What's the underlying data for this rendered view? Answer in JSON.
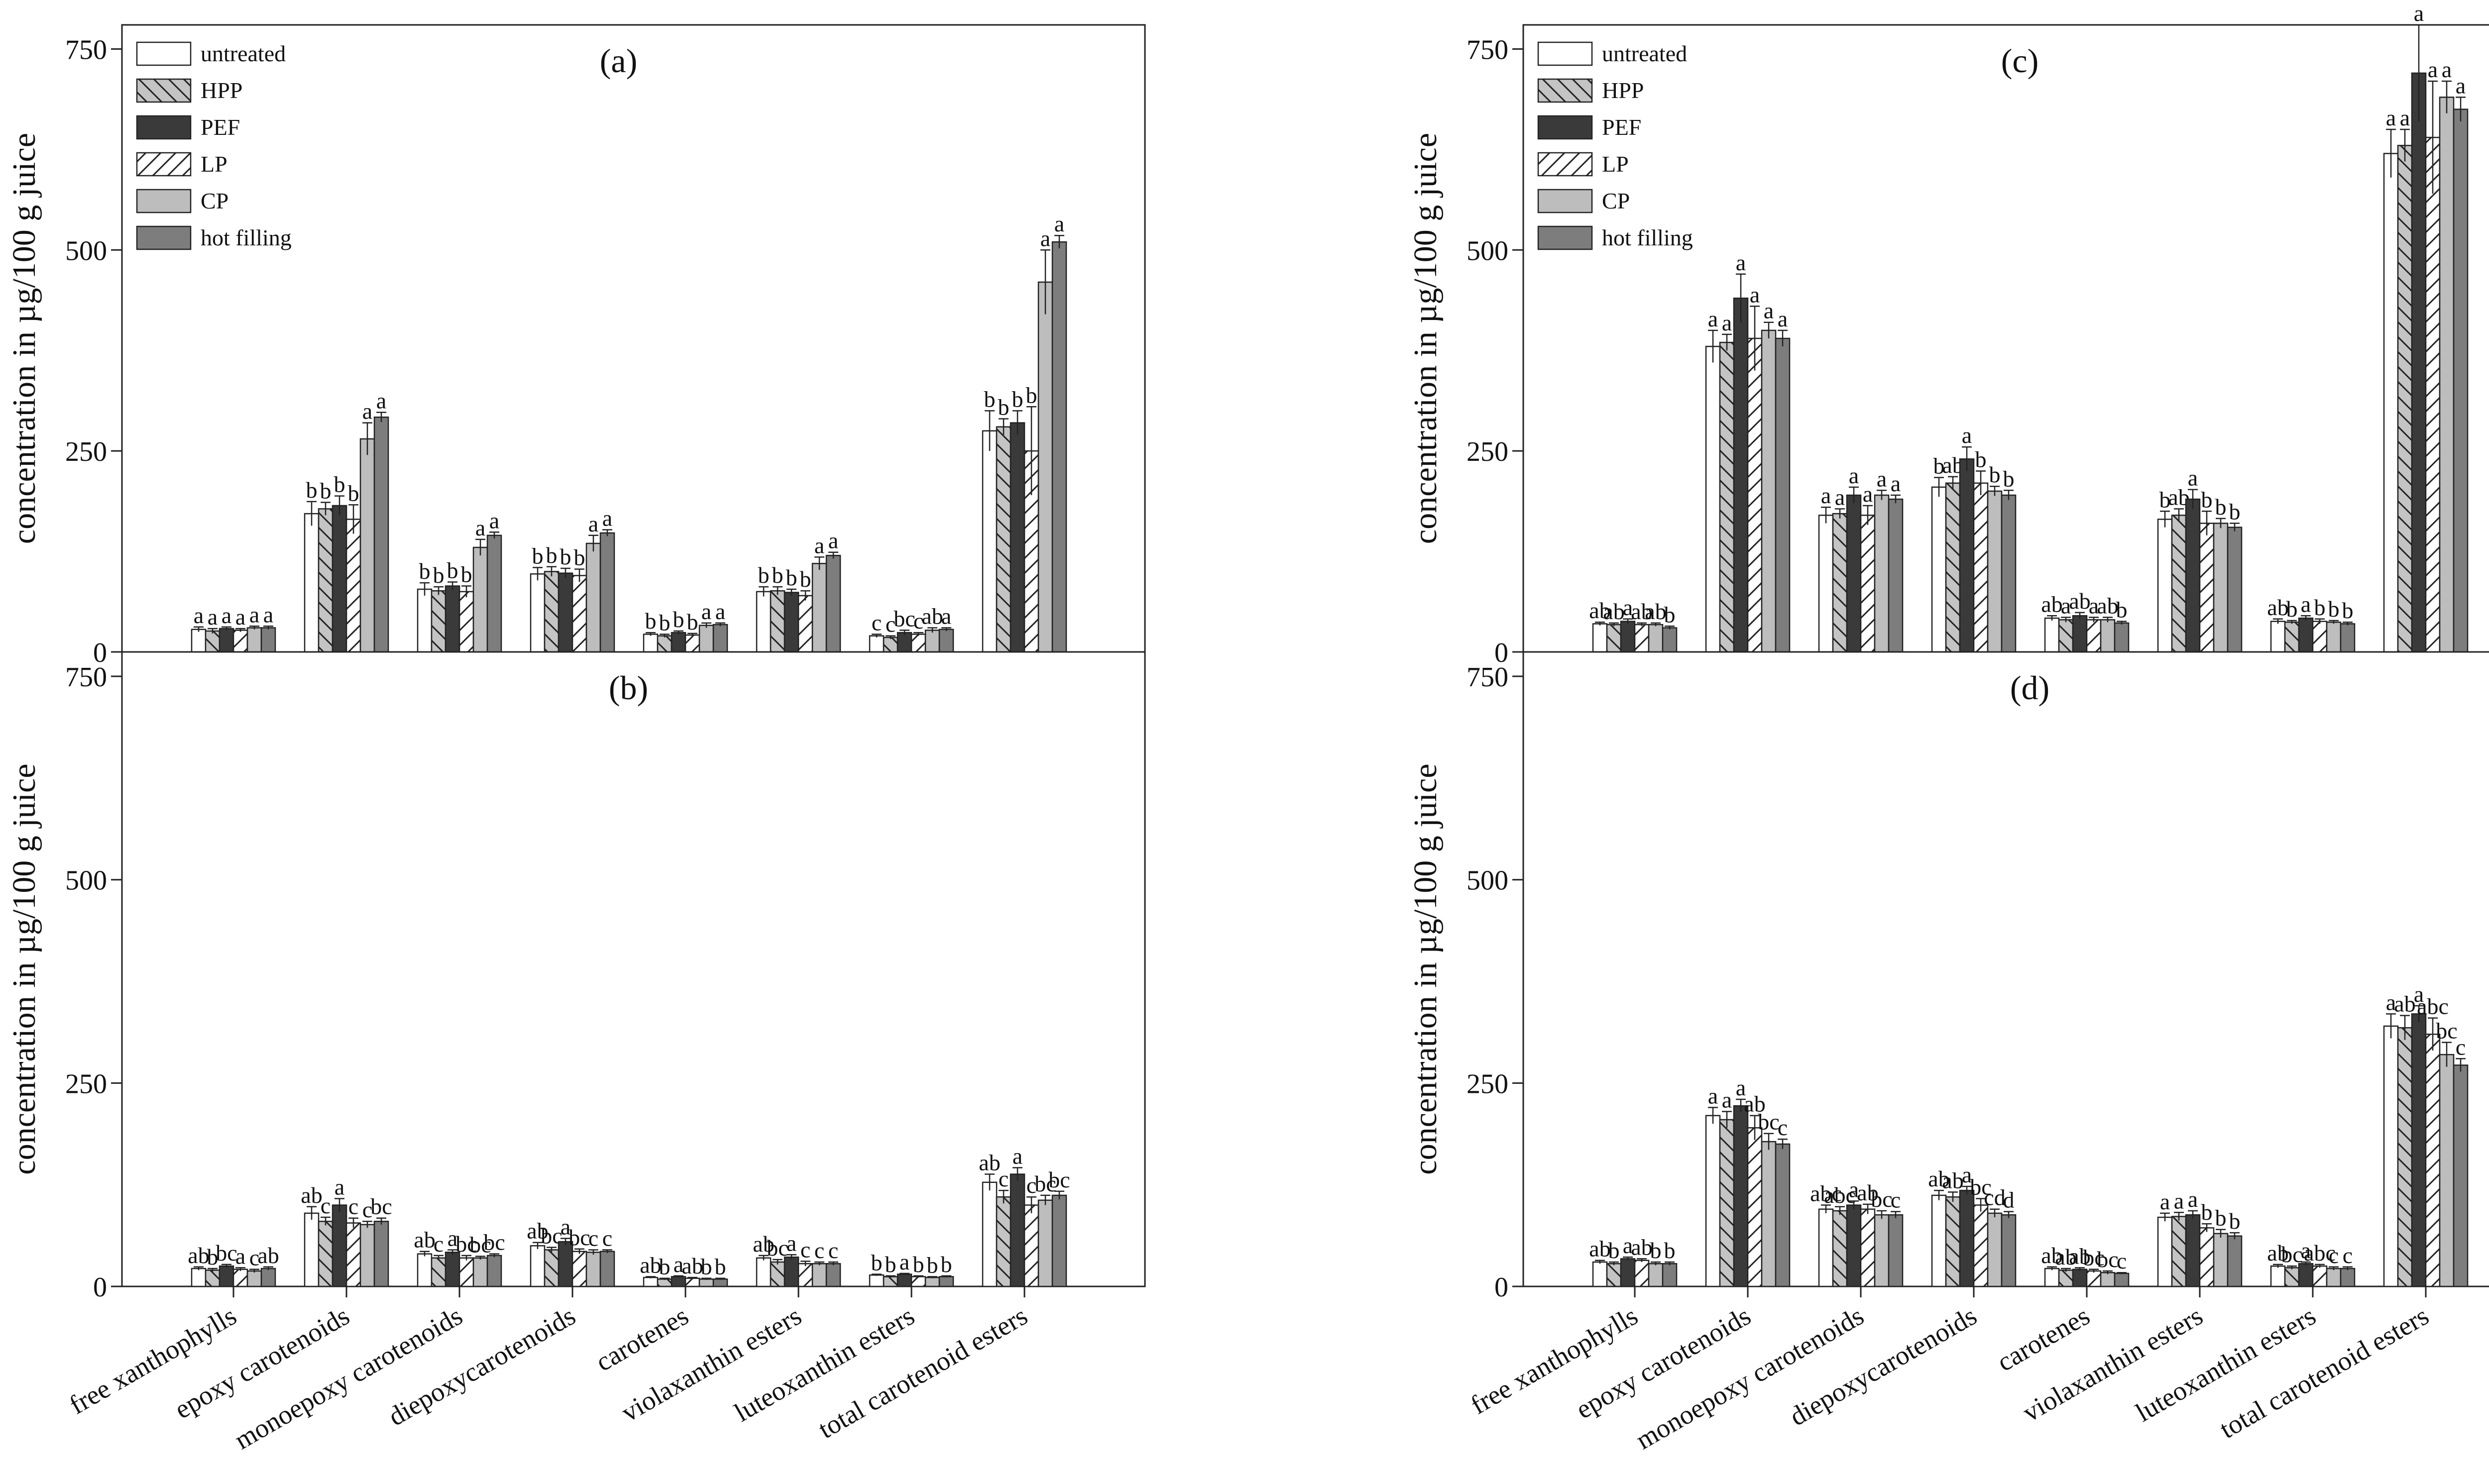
{
  "figure": {
    "ylabel": "concentration in µg/100 g juice",
    "yticks": [
      0,
      250,
      500,
      750
    ],
    "ylim": [
      0,
      780
    ]
  },
  "treatments": [
    {
      "name": "untreated",
      "fill": "#ffffff",
      "pattern": "none"
    },
    {
      "name": "HPP",
      "fill": "#c4c4c4",
      "pattern": "back-diagonal"
    },
    {
      "name": "PEF",
      "fill": "#3a3a3a",
      "pattern": "none"
    },
    {
      "name": "LP",
      "fill": "#ffffff",
      "pattern": "forward-diagonal"
    },
    {
      "name": "CP",
      "fill": "#bdbdbd",
      "pattern": "none"
    },
    {
      "name": "hot filling",
      "fill": "#7d7d7d",
      "pattern": "none"
    }
  ],
  "categories": [
    "free xanthophylls",
    "epoxy carotenoids",
    "monoepoxy carotenoids",
    "diepoxycarotenoids",
    "carotenes",
    "violaxanthin esters",
    "luteoxanthin esters",
    "total carotenoid esters"
  ],
  "chart_data": [
    {
      "type": "bar",
      "title": "(a)",
      "ylabel": "concentration in µg/100 g juice",
      "ylim": [
        0,
        780
      ],
      "categories": [
        "free xanthophylls",
        "epoxy carotenoids",
        "monoepoxy carotenoids",
        "diepoxycarotenoids",
        "carotenes",
        "violaxanthin esters",
        "luteoxanthin esters",
        "total carotenoid esters"
      ],
      "series": [
        {
          "name": "untreated",
          "values": [
            28,
            172,
            78,
            97,
            22,
            75,
            20,
            275
          ],
          "errors": [
            3,
            15,
            8,
            8,
            2,
            6,
            2,
            25
          ]
        },
        {
          "name": "HPP",
          "values": [
            26,
            178,
            76,
            100,
            20,
            76,
            18,
            280
          ],
          "errors": [
            3,
            8,
            5,
            6,
            2,
            5,
            2,
            10
          ]
        },
        {
          "name": "PEF",
          "values": [
            29,
            182,
            82,
            98,
            24,
            74,
            24,
            285
          ],
          "errors": [
            2,
            12,
            5,
            6,
            2,
            4,
            3,
            15
          ]
        },
        {
          "name": "LP",
          "values": [
            27,
            165,
            75,
            95,
            21,
            70,
            22,
            250
          ],
          "errors": [
            2,
            18,
            7,
            8,
            2,
            6,
            2,
            55
          ]
        },
        {
          "name": "CP",
          "values": [
            30,
            265,
            130,
            135,
            33,
            110,
            27,
            460
          ],
          "errors": [
            2,
            20,
            10,
            10,
            3,
            8,
            3,
            40
          ]
        },
        {
          "name": "hot filling",
          "values": [
            30,
            292,
            145,
            148,
            34,
            120,
            28,
            510
          ],
          "errors": [
            2,
            6,
            4,
            4,
            2,
            4,
            2,
            8
          ]
        }
      ],
      "labels": [
        [
          "a",
          "b",
          "b",
          "b",
          "b",
          "b",
          "c",
          "b"
        ],
        [
          "a",
          "b",
          "b",
          "b",
          "b",
          "b",
          "c",
          "b"
        ],
        [
          "a",
          "b",
          "b",
          "b",
          "b",
          "b",
          "bc",
          "b"
        ],
        [
          "a",
          "b",
          "b",
          "b",
          "b",
          "b",
          "c",
          "b"
        ],
        [
          "a",
          "a",
          "a",
          "a",
          "a",
          "a",
          "ab",
          "a"
        ],
        [
          "a",
          "a",
          "a",
          "a",
          "a",
          "a",
          "a",
          "a"
        ]
      ],
      "legend": "top-left"
    },
    {
      "type": "bar",
      "title": "(b)",
      "ylabel": "concentration in µg/100 g juice",
      "ylim": [
        0,
        780
      ],
      "categories": [
        "free xanthophylls",
        "epoxy carotenoids",
        "monoepoxy carotenoids",
        "diepoxycarotenoids",
        "carotenes",
        "violaxanthin esters",
        "luteoxanthin esters",
        "total carotenoid esters"
      ],
      "series": [
        {
          "name": "untreated",
          "values": [
            22,
            90,
            40,
            50,
            11,
            35,
            14,
            128
          ],
          "errors": [
            2,
            8,
            3,
            4,
            1,
            3,
            1,
            10
          ]
        },
        {
          "name": "HPP",
          "values": [
            20,
            80,
            35,
            45,
            9,
            30,
            12,
            110
          ],
          "errors": [
            2,
            5,
            3,
            3,
            1,
            3,
            1,
            8
          ]
        },
        {
          "name": "PEF",
          "values": [
            25,
            100,
            42,
            55,
            12,
            36,
            15,
            138
          ],
          "errors": [
            2,
            8,
            3,
            4,
            1,
            3,
            1,
            8
          ]
        },
        {
          "name": "LP",
          "values": [
            21,
            78,
            35,
            43,
            10,
            28,
            12,
            100
          ],
          "errors": [
            2,
            6,
            3,
            3,
            1,
            3,
            1,
            10
          ]
        },
        {
          "name": "CP",
          "values": [
            19,
            76,
            35,
            42,
            9,
            28,
            11,
            106
          ],
          "errors": [
            2,
            4,
            2,
            3,
            1,
            2,
            1,
            6
          ]
        },
        {
          "name": "hot filling",
          "values": [
            22,
            80,
            38,
            43,
            9,
            28,
            12,
            112
          ],
          "errors": [
            2,
            4,
            2,
            2,
            1,
            2,
            1,
            5
          ]
        }
      ],
      "labels": [
        [
          "ab",
          "ab",
          "ab",
          "ab",
          "ab",
          "ab",
          "b",
          "ab"
        ],
        [
          "b",
          "c",
          "c",
          "bc",
          "b",
          "bc",
          "b",
          "c"
        ],
        [
          "bc",
          "a",
          "a",
          "a",
          "a",
          "a",
          "a",
          "a"
        ],
        [
          "a",
          "c",
          "bc",
          "bc",
          "ab",
          "c",
          "b",
          "c"
        ],
        [
          "c",
          "c",
          "bc",
          "c",
          "b",
          "c",
          "b",
          "bc"
        ],
        [
          "ab",
          "bc",
          "bc",
          "c",
          "b",
          "c",
          "b",
          "bc"
        ]
      ],
      "legend": "none"
    },
    {
      "type": "bar",
      "title": "(c)",
      "ylabel": "concentration in µg/100 g juice",
      "ylim": [
        0,
        780
      ],
      "categories": [
        "free xanthophylls",
        "epoxy carotenoids",
        "monoepoxy carotenoids",
        "diepoxycarotenoids",
        "carotenes",
        "violaxanthin esters",
        "luteoxanthin esters",
        "total carotenoid esters"
      ],
      "series": [
        {
          "name": "untreated",
          "values": [
            35,
            380,
            170,
            205,
            42,
            165,
            38,
            620
          ],
          "errors": [
            2,
            20,
            10,
            12,
            3,
            10,
            3,
            30
          ]
        },
        {
          "name": "HPP",
          "values": [
            34,
            385,
            172,
            210,
            40,
            170,
            37,
            630
          ],
          "errors": [
            2,
            10,
            6,
            8,
            3,
            8,
            2,
            20
          ]
        },
        {
          "name": "PEF",
          "values": [
            38,
            440,
            195,
            240,
            45,
            190,
            42,
            720
          ],
          "errors": [
            3,
            30,
            10,
            15,
            4,
            12,
            3,
            60
          ]
        },
        {
          "name": "LP",
          "values": [
            34,
            390,
            170,
            210,
            40,
            160,
            38,
            640
          ],
          "errors": [
            2,
            40,
            12,
            15,
            3,
            15,
            3,
            70
          ]
        },
        {
          "name": "CP",
          "values": [
            34,
            400,
            195,
            200,
            40,
            160,
            37,
            690
          ],
          "errors": [
            2,
            10,
            6,
            6,
            3,
            6,
            2,
            20
          ]
        },
        {
          "name": "hot filling",
          "values": [
            30,
            390,
            190,
            195,
            36,
            155,
            35,
            675
          ],
          "errors": [
            2,
            10,
            5,
            6,
            2,
            5,
            2,
            15
          ]
        }
      ],
      "labels": [
        [
          "ab",
          "a",
          "a",
          "b",
          "ab",
          "b",
          "ab",
          "a"
        ],
        [
          "ab",
          "a",
          "a",
          "ab",
          "a",
          "ab",
          "b",
          "a"
        ],
        [
          "a",
          "a",
          "a",
          "a",
          "ab",
          "a",
          "a",
          "a"
        ],
        [
          "ab",
          "a",
          "a",
          "b",
          "a",
          "b",
          "b",
          "a"
        ],
        [
          "ab",
          "a",
          "a",
          "b",
          "ab",
          "b",
          "b",
          "a"
        ],
        [
          "b",
          "a",
          "a",
          "b",
          "b",
          "b",
          "b",
          "a"
        ]
      ],
      "legend": "top-left"
    },
    {
      "type": "bar",
      "title": "(d)",
      "ylabel": "concentration in µg/100 g juice",
      "ylim": [
        0,
        780
      ],
      "categories": [
        "free xanthophylls",
        "epoxy carotenoids",
        "monoepoxy carotenoids",
        "diepoxycarotenoids",
        "carotenes",
        "violaxanthin esters",
        "luteoxanthin esters",
        "total carotenoid esters"
      ],
      "series": [
        {
          "name": "untreated",
          "values": [
            30,
            210,
            95,
            112,
            22,
            85,
            25,
            320
          ],
          "errors": [
            2,
            10,
            5,
            6,
            2,
            5,
            2,
            15
          ]
        },
        {
          "name": "HPP",
          "values": [
            28,
            205,
            93,
            110,
            20,
            86,
            23,
            318
          ],
          "errors": [
            2,
            10,
            5,
            6,
            2,
            5,
            2,
            15
          ]
        },
        {
          "name": "PEF",
          "values": [
            34,
            222,
            100,
            118,
            21,
            88,
            28,
            335
          ],
          "errors": [
            2,
            8,
            5,
            5,
            2,
            5,
            2,
            10
          ]
        },
        {
          "name": "LP",
          "values": [
            32,
            195,
            95,
            100,
            19,
            72,
            25,
            310
          ],
          "errors": [
            2,
            15,
            6,
            8,
            2,
            5,
            2,
            20
          ]
        },
        {
          "name": "CP",
          "values": [
            28,
            178,
            88,
            90,
            17,
            65,
            22,
            285
          ],
          "errors": [
            2,
            10,
            5,
            5,
            2,
            5,
            2,
            15
          ]
        },
        {
          "name": "hot filling",
          "values": [
            28,
            175,
            88,
            88,
            16,
            62,
            22,
            272
          ],
          "errors": [
            2,
            6,
            4,
            4,
            1,
            4,
            2,
            8
          ]
        }
      ],
      "labels": [
        [
          "ab",
          "a",
          "abc",
          "ab",
          "ab",
          "a",
          "ab",
          "a"
        ],
        [
          "b",
          "a",
          "abc",
          "ab",
          "ab",
          "a",
          "bc",
          "ab"
        ],
        [
          "a",
          "a",
          "a",
          "a",
          "ab",
          "a",
          "a",
          "a"
        ],
        [
          "ab",
          "ab",
          "ab",
          "bc",
          "bc",
          "b",
          "abc",
          "abc"
        ],
        [
          "b",
          "bc",
          "bc",
          "cd",
          "bc",
          "b",
          "c",
          "bc"
        ],
        [
          "b",
          "c",
          "c",
          "d",
          "c",
          "b",
          "c",
          "c"
        ]
      ],
      "legend": "none"
    }
  ]
}
